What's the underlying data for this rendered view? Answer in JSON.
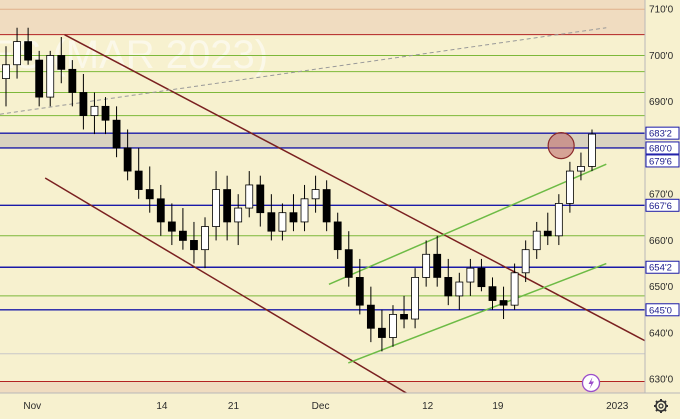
{
  "chart_data": {
    "type": "candlestick",
    "watermark": "ES (MAR 2023)",
    "ylim": [
      627,
      712
    ],
    "y_ticks": [
      {
        "value": 710,
        "label": "710'0"
      },
      {
        "value": 700,
        "label": "700'0"
      },
      {
        "value": 690,
        "label": "690'0"
      },
      {
        "value": 670,
        "label": "670'0"
      },
      {
        "value": 660,
        "label": "660'0"
      },
      {
        "value": 650,
        "label": "650'0"
      },
      {
        "value": 640,
        "label": "640'0"
      },
      {
        "value": 630,
        "label": "630'0"
      }
    ],
    "price_badges": [
      {
        "value": 683.2,
        "label": "683'2"
      },
      {
        "value": 680.0,
        "label": "680'0"
      },
      {
        "value": 679.6,
        "label": "679'6"
      },
      {
        "value": 667.6,
        "label": "667'6"
      },
      {
        "value": 654.2,
        "label": "654'2"
      },
      {
        "value": 645.0,
        "label": "645'0"
      }
    ],
    "x_ticks": [
      "Nov",
      "14",
      "21",
      "Dec",
      "12",
      "19",
      "2023"
    ],
    "bands": [
      {
        "from": 680.0,
        "to": 683.2,
        "color": "#d9d2c0"
      },
      {
        "from": 704.5,
        "to": 712,
        "color": "#f0dcc0"
      },
      {
        "from": 627,
        "to": 629.5,
        "color": "#f0dcc0"
      }
    ],
    "horizontal_levels": [
      {
        "value": 710,
        "color": "#e0b08a"
      },
      {
        "value": 704.5,
        "color": "#b22222"
      },
      {
        "value": 700,
        "color": "#7db83a"
      },
      {
        "value": 696.5,
        "color": "#7db83a"
      },
      {
        "value": 692,
        "color": "#7db83a"
      },
      {
        "value": 687,
        "color": "#7db83a"
      },
      {
        "value": 683.2,
        "color": "#1a1aa8"
      },
      {
        "value": 680.0,
        "color": "#1a1aa8"
      },
      {
        "value": 667.6,
        "color": "#1a1aa8"
      },
      {
        "value": 661,
        "color": "#7db83a"
      },
      {
        "value": 654.2,
        "color": "#1a1aa8"
      },
      {
        "value": 648,
        "color": "#7db83a"
      },
      {
        "value": 645.0,
        "color": "#1a1aa8"
      },
      {
        "value": 635.5,
        "color": "#c8c8c8"
      },
      {
        "value": 629.5,
        "color": "#b22222"
      }
    ],
    "trend_lines": [
      {
        "from": [
          0.1,
          704.5
        ],
        "to": [
          1.0,
          638.3
        ],
        "color": "#7a2020",
        "style": "solid"
      },
      {
        "from": [
          0.07,
          673.5
        ],
        "to": [
          0.66,
          624.5
        ],
        "color": "#7a2020",
        "style": "solid"
      },
      {
        "from": [
          0.0,
          687.3
        ],
        "to": [
          0.94,
          706.0
        ],
        "color": "#999999",
        "style": "dashed"
      },
      {
        "from": [
          0.51,
          650.5
        ],
        "to": [
          0.94,
          676.5
        ],
        "color": "#6dbb45",
        "style": "solid"
      },
      {
        "from": [
          0.54,
          633.5
        ],
        "to": [
          0.94,
          655.0
        ],
        "color": "#6dbb45",
        "style": "solid"
      }
    ],
    "marker": {
      "x": 0.87,
      "y": 680.5,
      "color": "#c07070"
    },
    "candles": [
      [
        695.0,
        702.0,
        689.0,
        698.0
      ],
      [
        698.0,
        706.0,
        695.0,
        703.0
      ],
      [
        703.0,
        706.0,
        698.0,
        699.0
      ],
      [
        699.0,
        701.0,
        689.0,
        691.0
      ],
      [
        691.0,
        701.0,
        689.0,
        700.0
      ],
      [
        700.0,
        704.0,
        694.0,
        697.0
      ],
      [
        697.0,
        699.0,
        689.0,
        692.0
      ],
      [
        692.0,
        696.0,
        684.0,
        687.0
      ],
      [
        687.0,
        692.0,
        683.0,
        689.0
      ],
      [
        689.0,
        691.0,
        683.0,
        686.0
      ],
      [
        686.0,
        689.0,
        678.0,
        680.0
      ],
      [
        680.0,
        684.0,
        673.0,
        675.0
      ],
      [
        675.0,
        680.0,
        669.0,
        671.0
      ],
      [
        671.0,
        676.0,
        666.0,
        669.0
      ],
      [
        669.0,
        672.0,
        661.0,
        664.0
      ],
      [
        664.0,
        668.0,
        659.0,
        662.0
      ],
      [
        662.0,
        667.0,
        658.0,
        660.0
      ],
      [
        660.0,
        664.0,
        655.0,
        658.0
      ],
      [
        658.0,
        665.0,
        654.0,
        663.0
      ],
      [
        663.0,
        675.0,
        660.0,
        671.0
      ],
      [
        671.0,
        674.0,
        660.0,
        664.0
      ],
      [
        664.0,
        670.0,
        659.0,
        667.0
      ],
      [
        667.0,
        675.0,
        665.0,
        672.0
      ],
      [
        672.0,
        674.0,
        663.0,
        666.0
      ],
      [
        666.0,
        670.0,
        660.0,
        662.0
      ],
      [
        662.0,
        668.0,
        660.0,
        666.0
      ],
      [
        666.0,
        670.0,
        662.0,
        664.0
      ],
      [
        664.0,
        672.0,
        662.0,
        669.0
      ],
      [
        669.0,
        674.0,
        666.0,
        671.0
      ],
      [
        671.0,
        673.0,
        662.0,
        664.0
      ],
      [
        664.0,
        666.0,
        656.0,
        658.0
      ],
      [
        658.0,
        662.0,
        650.0,
        652.0
      ],
      [
        652.0,
        656.0,
        644.0,
        646.0
      ],
      [
        646.0,
        650.0,
        638.0,
        641.0
      ],
      [
        641.0,
        645.0,
        636.0,
        639.0
      ],
      [
        639.0,
        646.0,
        637.0,
        644.0
      ],
      [
        644.0,
        648.0,
        641.0,
        643.0
      ],
      [
        643.0,
        654.0,
        641.0,
        652.0
      ],
      [
        652.0,
        660.0,
        650.0,
        657.0
      ],
      [
        657.0,
        661.0,
        650.0,
        652.0
      ],
      [
        652.0,
        656.0,
        646.0,
        648.0
      ],
      [
        648.0,
        653.0,
        645.0,
        651.0
      ],
      [
        651.0,
        656.0,
        648.0,
        654.0
      ],
      [
        654.0,
        656.0,
        649.0,
        650.0
      ],
      [
        650.0,
        652.0,
        645.0,
        647.0
      ],
      [
        647.0,
        650.0,
        643.0,
        646.0
      ],
      [
        646.0,
        655.0,
        645.0,
        653.0
      ],
      [
        653.0,
        660.0,
        651.0,
        658.0
      ],
      [
        658.0,
        664.0,
        656.0,
        662.0
      ],
      [
        662.0,
        666.0,
        659.0,
        661.0
      ],
      [
        661.0,
        670.0,
        659.0,
        668.0
      ],
      [
        668.0,
        677.0,
        666.0,
        675.0
      ],
      [
        675.0,
        679.0,
        673.0,
        676.0
      ],
      [
        676.0,
        684.0,
        675.0,
        683.0
      ]
    ]
  }
}
